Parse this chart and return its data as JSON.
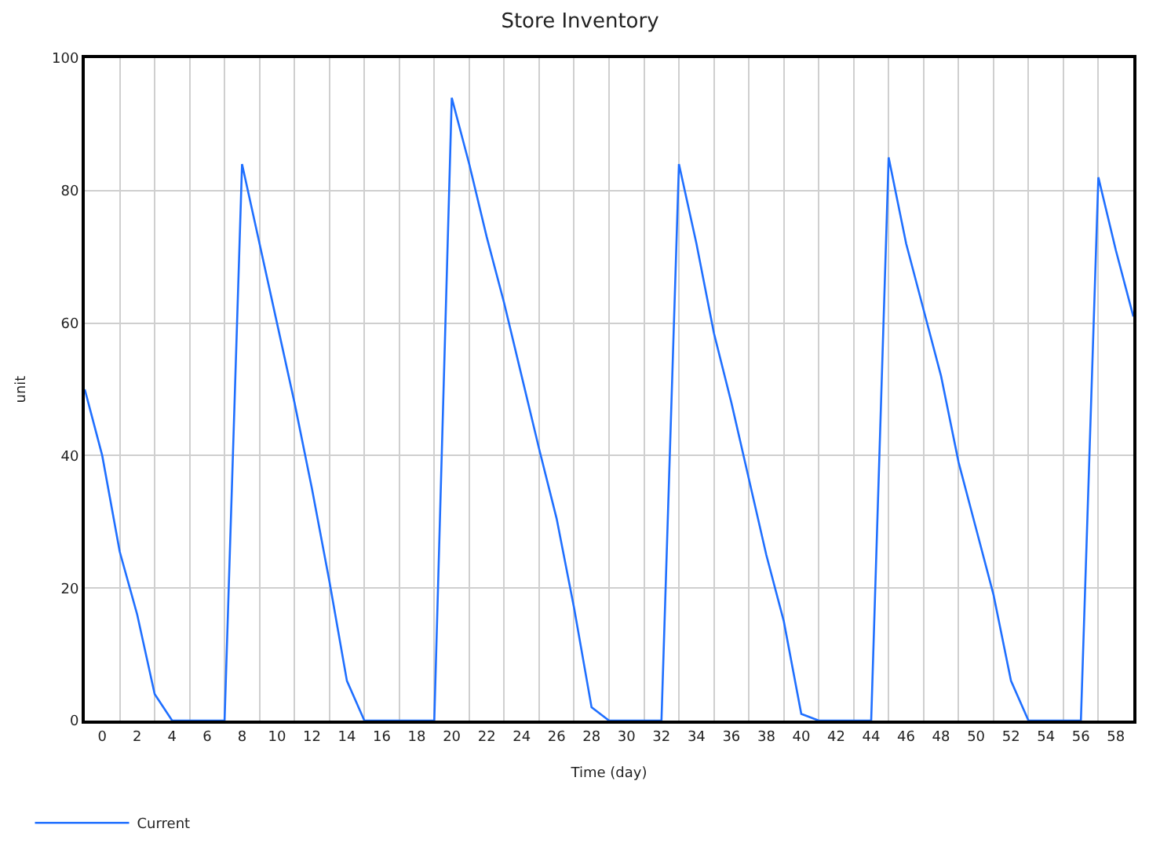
{
  "chart_data": {
    "type": "line",
    "title": "Store Inventory",
    "xlabel": "Time (day)",
    "ylabel": "unit",
    "x": [
      -1,
      0,
      1,
      2,
      3,
      4,
      5,
      6,
      7,
      8,
      9,
      10,
      11,
      12,
      13,
      14,
      15,
      16,
      17,
      18,
      19,
      20,
      21,
      22,
      23,
      24,
      25,
      26,
      27,
      28,
      29,
      30,
      31,
      32,
      33,
      34,
      35,
      36,
      37,
      38,
      39,
      40,
      41,
      42,
      43,
      44,
      45,
      46,
      47,
      48,
      49,
      50,
      51,
      52,
      53,
      54,
      55,
      56,
      57,
      58,
      59
    ],
    "series": [
      {
        "name": "Current",
        "color": "#1f6fff",
        "values": [
          50,
          40,
          25.5,
          16,
          4,
          0,
          0,
          0,
          0,
          84,
          72,
          60,
          48,
          35,
          21,
          6,
          0,
          0,
          0,
          0,
          0,
          94,
          84,
          73,
          63,
          52,
          41,
          30.5,
          17,
          2,
          0,
          0,
          0,
          0,
          84,
          72,
          58.5,
          48,
          36.5,
          25,
          15,
          1,
          0,
          0,
          0,
          0,
          85,
          72,
          62,
          52,
          39,
          29,
          19,
          6,
          0,
          0,
          0,
          0,
          82,
          71,
          61
        ]
      }
    ],
    "xlim": [
      -1,
      59
    ],
    "xticks": [
      0,
      2,
      4,
      6,
      8,
      10,
      12,
      14,
      16,
      18,
      20,
      22,
      24,
      26,
      28,
      30,
      32,
      34,
      36,
      38,
      40,
      42,
      44,
      46,
      48,
      50,
      52,
      54,
      56,
      58,
      {
        "value": 1,
        "label": null
      },
      {
        "value": 3,
        "label": null
      },
      {
        "value": 5,
        "label": null
      },
      {
        "value": 7,
        "label": null
      },
      {
        "value": 9,
        "label": null
      },
      {
        "value": 11,
        "label": null
      },
      {
        "value": 13,
        "label": null
      },
      {
        "value": 15,
        "label": null
      },
      {
        "value": 17,
        "label": null
      },
      {
        "value": 19,
        "label": null
      },
      {
        "value": 21,
        "label": null
      },
      {
        "value": 23,
        "label": null
      },
      {
        "value": 25,
        "label": null
      },
      {
        "value": 27,
        "label": null
      },
      {
        "value": 29,
        "label": null
      },
      {
        "value": 31,
        "label": null
      },
      {
        "value": 33,
        "label": null
      },
      {
        "value": 35,
        "label": null
      },
      {
        "value": 37,
        "label": null
      },
      {
        "value": 39,
        "label": null
      },
      {
        "value": 41,
        "label": null
      },
      {
        "value": 43,
        "label": null
      },
      {
        "value": 45,
        "label": null
      },
      {
        "value": 47,
        "label": null
      },
      {
        "value": 49,
        "label": null
      },
      {
        "value": 51,
        "label": null
      },
      {
        "value": 53,
        "label": null
      },
      {
        "value": 55,
        "label": null
      },
      {
        "value": 57,
        "label": null
      }
    ],
    "ylim": [
      0,
      100
    ],
    "yticks": [
      0,
      20,
      40,
      60,
      80,
      100
    ],
    "grid": true,
    "legend": "bottom left",
    "marker": "none",
    "line_style": "solid"
  }
}
